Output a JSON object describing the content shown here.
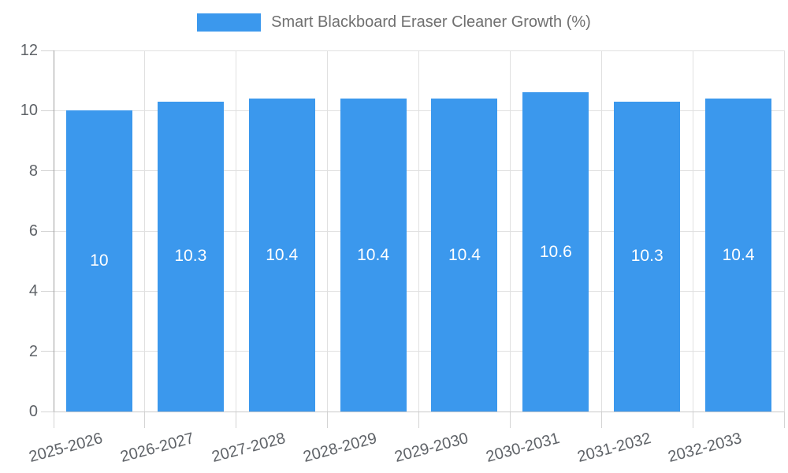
{
  "chart_data": {
    "type": "bar",
    "title": "",
    "legend_label": "Smart Blackboard Eraser Cleaner Growth (%)",
    "legend_position": "top",
    "categories": [
      "2025-2026",
      "2026-2027",
      "2027-2028",
      "2028-2029",
      "2029-2030",
      "2030-2031",
      "2031-2032",
      "2032-2033"
    ],
    "values": [
      10,
      10.3,
      10.4,
      10.4,
      10.4,
      10.6,
      10.3,
      10.4
    ],
    "value_labels": [
      "10",
      "10.3",
      "10.4",
      "10.4",
      "10.4",
      "10.6",
      "10.3",
      "10.4"
    ],
    "xlabel": "",
    "ylabel": "",
    "ylim": [
      0,
      12
    ],
    "yticks": [
      0,
      2,
      4,
      6,
      8,
      10,
      12
    ],
    "grid": true,
    "colors": {
      "bar": "#3B98ED",
      "grid": "#E0E0E0",
      "tick": "#D4D4D4",
      "y_axis_line": "#9E9E9E",
      "x_axis_line": "#C9C9C9",
      "axis_label": "#5F6368",
      "legend_text": "#707070",
      "value_label": "#FFFFFF",
      "background": "#FFFFFF"
    }
  }
}
